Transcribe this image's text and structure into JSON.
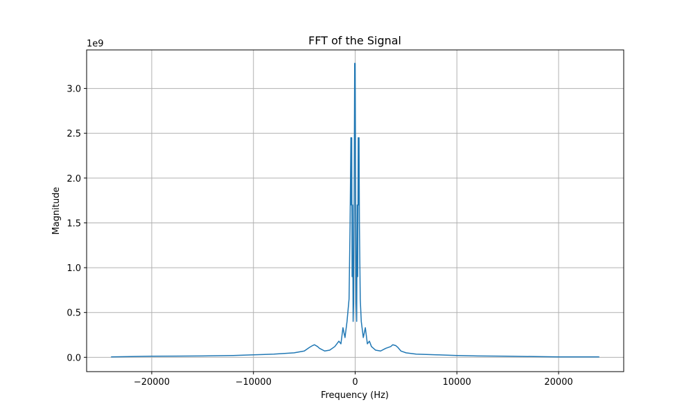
{
  "chart_data": {
    "type": "line",
    "title": "FFT of the Signal",
    "xlabel": "Frequency (Hz)",
    "ylabel": "Magnitude",
    "y_offset_label": "1e9",
    "y_scale": 1000000000,
    "xlim": [
      -26400,
      26400
    ],
    "ylim": [
      -0.16,
      3.43
    ],
    "x_ticks": [
      -20000,
      -10000,
      0,
      10000,
      20000
    ],
    "x_tick_labels": [
      "−20000",
      "−10000",
      "0",
      "10000",
      "20000"
    ],
    "y_ticks": [
      0.0,
      0.5,
      1.0,
      1.5,
      2.0,
      2.5,
      3.0
    ],
    "y_tick_labels": [
      "0.0",
      "0.5",
      "1.0",
      "1.5",
      "2.0",
      "2.5",
      "3.0"
    ],
    "grid": true,
    "legend": "none",
    "line_color": "#1f77b4",
    "series": [
      {
        "x": [
          -24000,
          -20000,
          -15000,
          -12000,
          -10000,
          -8000,
          -6000,
          -5000,
          -4500,
          -4200,
          -4000,
          -3700,
          -3500,
          -3000,
          -2500,
          -2000,
          -1600,
          -1400,
          -1200,
          -1000,
          -800,
          -600,
          -500,
          -420,
          -380,
          -340,
          -300,
          -250,
          -200,
          -150,
          -100,
          -50,
          0,
          50,
          100,
          150,
          200,
          250,
          300,
          340,
          380,
          420,
          500,
          600,
          800,
          1000,
          1200,
          1400,
          1600,
          2000,
          2500,
          3000,
          3500,
          3700,
          4000,
          4200,
          4500,
          5000,
          6000,
          8000,
          10000,
          12000,
          15000,
          20000,
          24000
        ],
        "y": [
          0.004,
          0.012,
          0.015,
          0.02,
          0.028,
          0.035,
          0.05,
          0.07,
          0.11,
          0.13,
          0.14,
          0.12,
          0.1,
          0.07,
          0.08,
          0.12,
          0.18,
          0.15,
          0.33,
          0.22,
          0.4,
          0.65,
          1.47,
          2.45,
          1.7,
          2.45,
          0.9,
          1.7,
          0.4,
          0.6,
          1.7,
          3.28,
          3.28,
          1.7,
          0.6,
          0.4,
          1.7,
          0.9,
          2.45,
          1.7,
          2.45,
          1.47,
          0.65,
          0.4,
          0.22,
          0.33,
          0.15,
          0.18,
          0.12,
          0.08,
          0.07,
          0.1,
          0.12,
          0.14,
          0.13,
          0.11,
          0.07,
          0.05,
          0.035,
          0.028,
          0.02,
          0.015,
          0.012,
          0.004,
          0.004
        ]
      }
    ]
  }
}
